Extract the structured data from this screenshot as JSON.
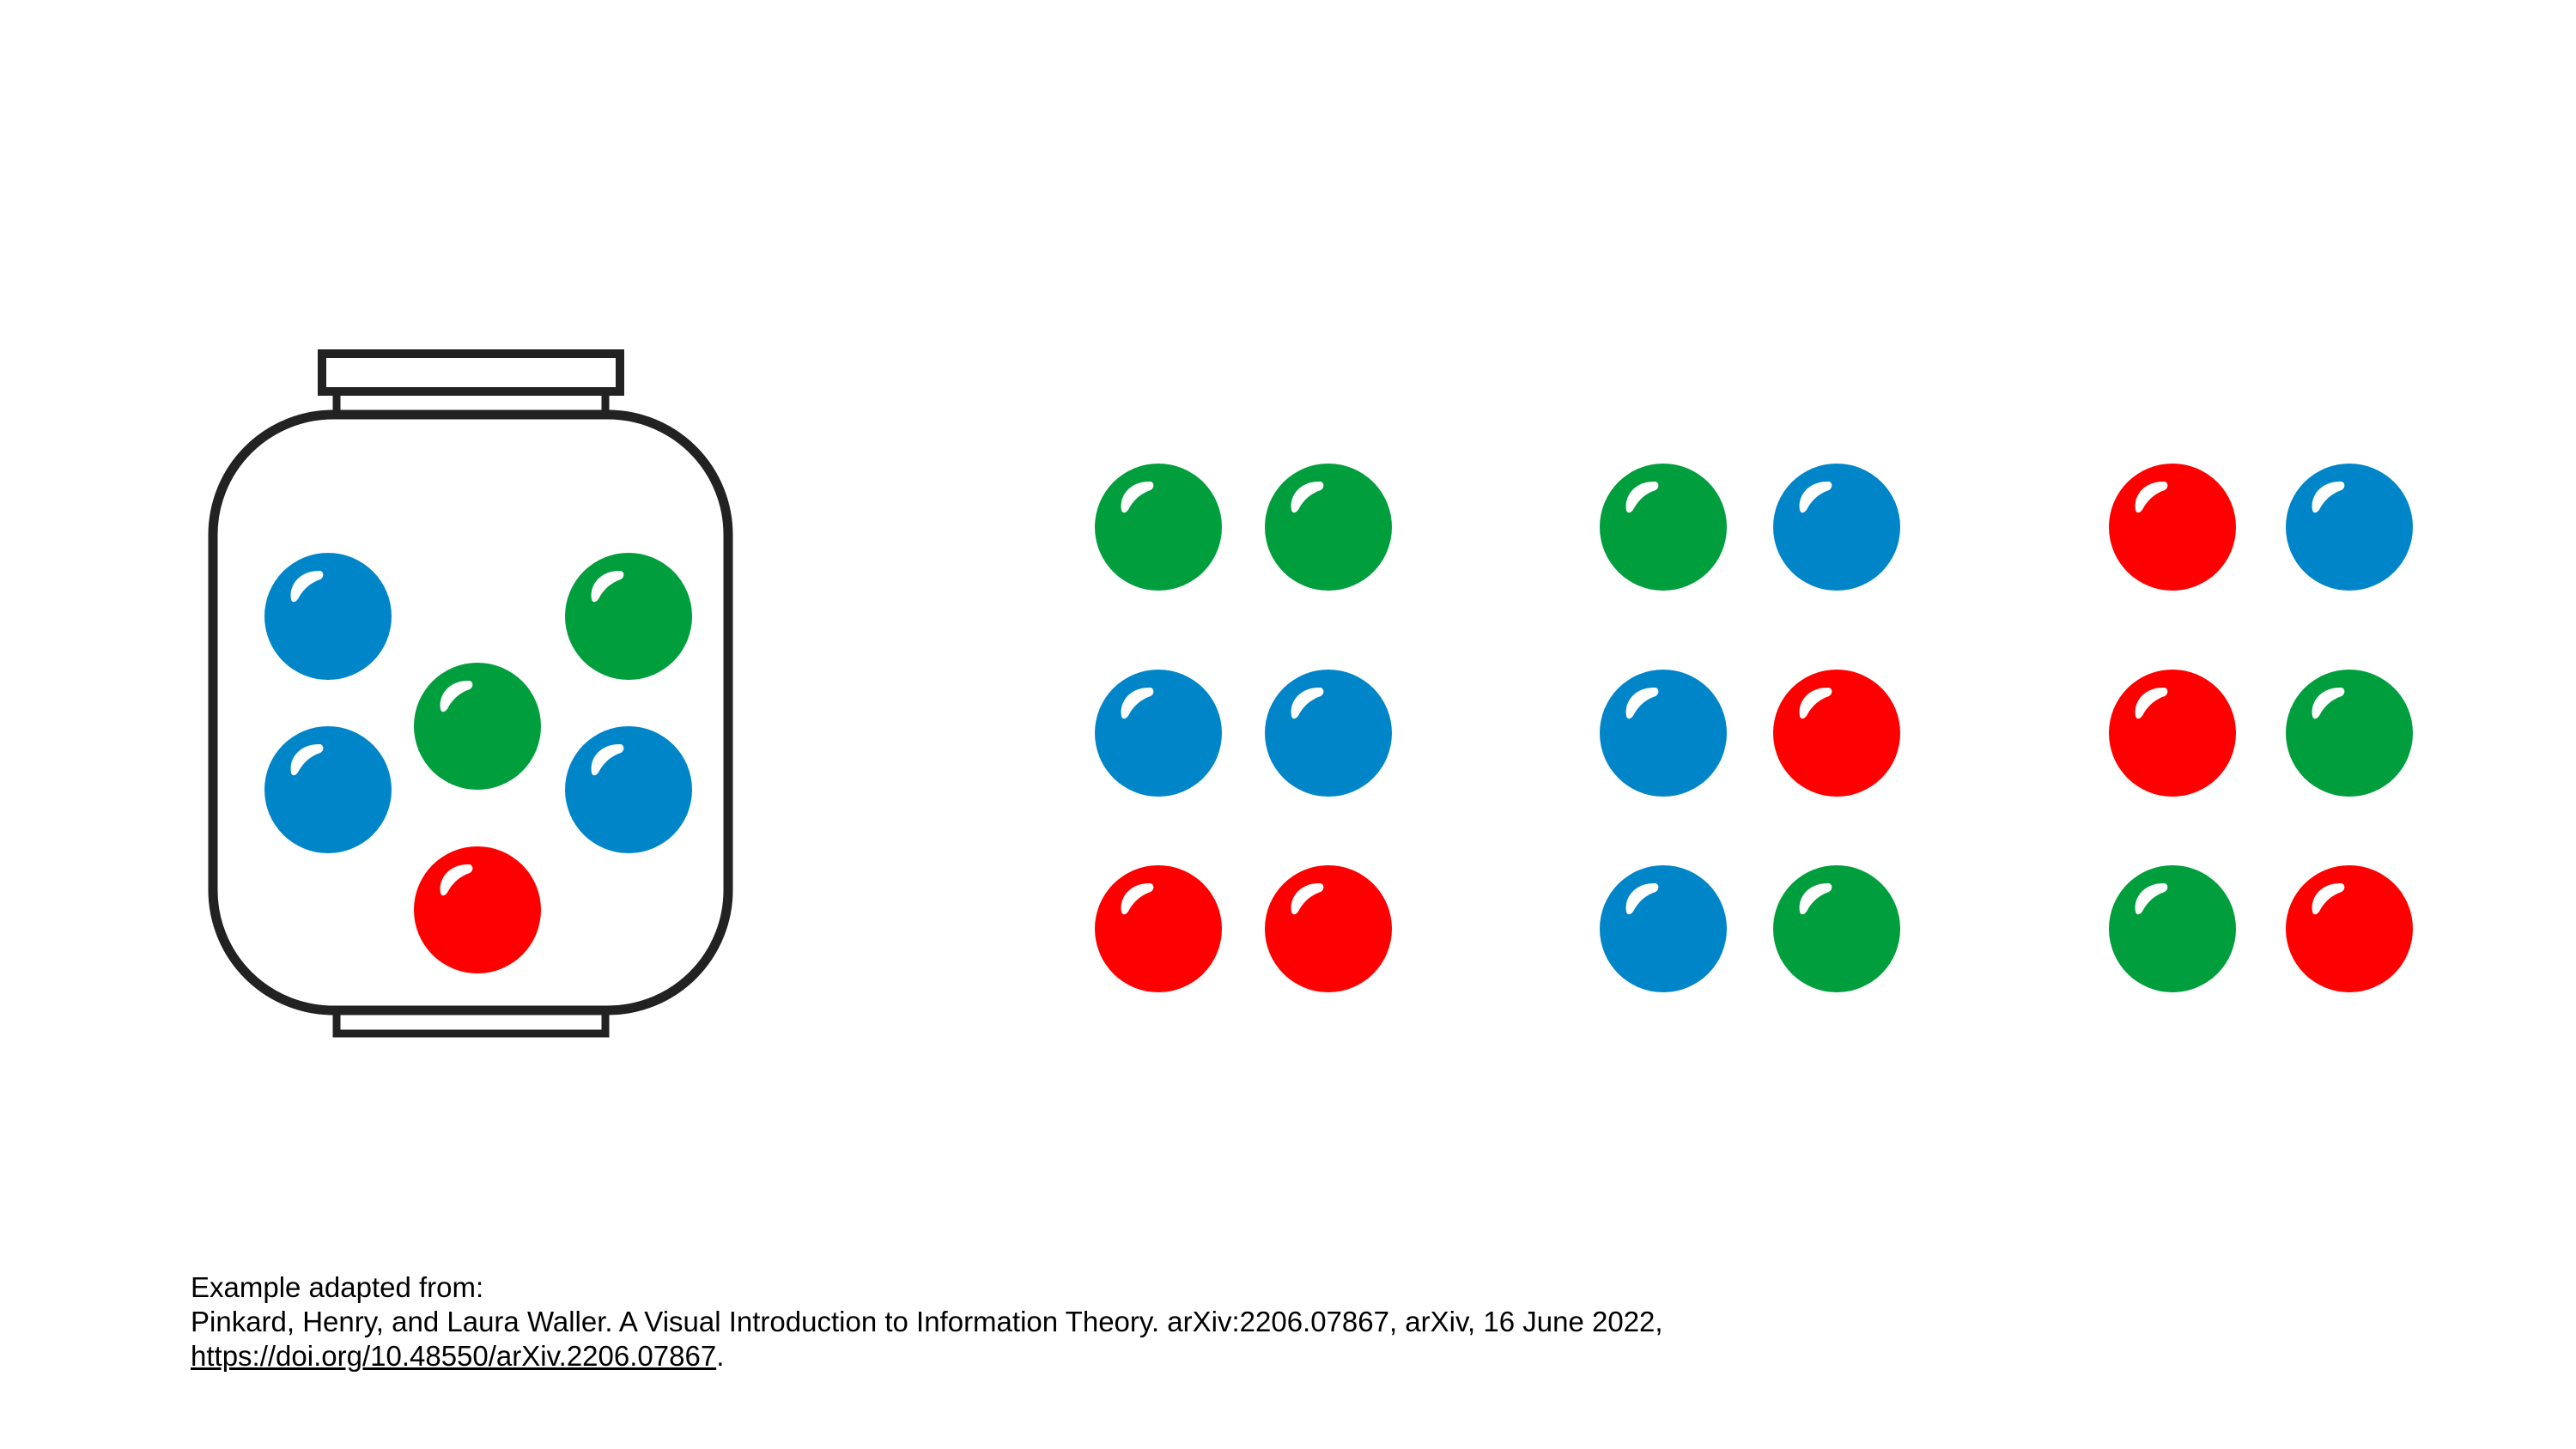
{
  "colors": {
    "blue": "#0086C8",
    "green": "#009E3C",
    "red": "#FF0000",
    "outline": "#222222",
    "highlight": "#FFFFFF"
  },
  "jar": {
    "marbles": [
      "blue",
      "green",
      "green",
      "blue",
      "blue",
      "red"
    ]
  },
  "groups": [
    {
      "rows": [
        [
          "green",
          "green"
        ],
        [
          "blue",
          "blue"
        ],
        [
          "red",
          "red"
        ]
      ]
    },
    {
      "rows": [
        [
          "green",
          "blue"
        ],
        [
          "blue",
          "red"
        ],
        [
          "blue",
          "green"
        ]
      ]
    },
    {
      "rows": [
        [
          "red",
          "blue"
        ],
        [
          "red",
          "green"
        ],
        [
          "green",
          "red"
        ]
      ]
    }
  ],
  "caption": {
    "line1": "Example adapted from:",
    "line2": "Pinkard, Henry, and Laura Waller. A Visual Introduction to Information Theory. arXiv:2206.07867, arXiv, 16 June 2022,",
    "link": "https://doi.org/10.48550/arXiv.2206.07867",
    "period": "."
  }
}
